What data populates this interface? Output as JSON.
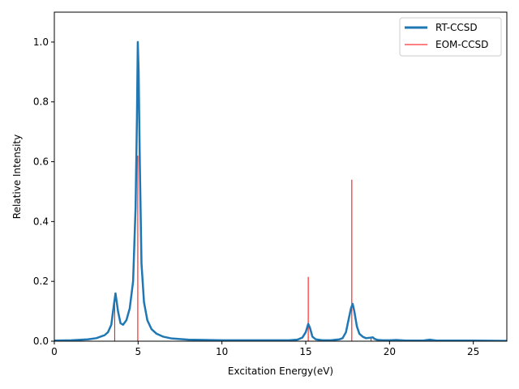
{
  "chart_data": {
    "type": "line",
    "title": "",
    "xlabel": "Excitation Energy(eV)",
    "ylabel": "Relative Intensity",
    "xlim": [
      0,
      27
    ],
    "ylim": [
      0,
      1.1
    ],
    "xticks": [
      0,
      5,
      10,
      15,
      20,
      25
    ],
    "xtick_labels": [
      "0",
      "5",
      "10",
      "15",
      "20",
      "25"
    ],
    "yticks": [
      0.0,
      0.2,
      0.4,
      0.6,
      0.8,
      1.0
    ],
    "ytick_labels": [
      "0.0",
      "0.2",
      "0.4",
      "0.6",
      "0.8",
      "1.0"
    ],
    "grid": false,
    "legend_position": "top-right",
    "series": [
      {
        "name": "RT-CCSD",
        "style": "line",
        "color": "#1f77b4",
        "x": [
          0,
          1,
          2,
          2.5,
          3,
          3.2,
          3.4,
          3.55,
          3.65,
          3.8,
          3.95,
          4.1,
          4.3,
          4.5,
          4.7,
          4.85,
          4.93,
          4.98,
          5.03,
          5.1,
          5.2,
          5.35,
          5.55,
          5.8,
          6.1,
          6.5,
          7,
          8,
          10,
          12,
          14,
          14.5,
          14.8,
          15.0,
          15.15,
          15.25,
          15.4,
          15.6,
          16,
          16.5,
          17,
          17.2,
          17.4,
          17.55,
          17.7,
          17.8,
          17.9,
          18.05,
          18.2,
          18.4,
          18.6,
          18.9,
          19.0,
          19.1,
          19.3,
          19.6,
          20,
          20.4,
          21,
          22,
          22.4,
          22.8,
          23.5,
          25,
          27
        ],
        "values": [
          0.002,
          0.003,
          0.006,
          0.01,
          0.02,
          0.03,
          0.055,
          0.12,
          0.16,
          0.1,
          0.06,
          0.055,
          0.07,
          0.11,
          0.2,
          0.45,
          0.75,
          1.0,
          0.9,
          0.6,
          0.26,
          0.13,
          0.07,
          0.04,
          0.025,
          0.015,
          0.009,
          0.005,
          0.003,
          0.003,
          0.003,
          0.005,
          0.012,
          0.03,
          0.058,
          0.045,
          0.015,
          0.006,
          0.003,
          0.003,
          0.006,
          0.01,
          0.03,
          0.07,
          0.11,
          0.125,
          0.1,
          0.05,
          0.025,
          0.015,
          0.01,
          0.012,
          0.013,
          0.008,
          0.004,
          0.003,
          0.003,
          0.004,
          0.002,
          0.002,
          0.005,
          0.002,
          0.002,
          0.002,
          0.001
        ]
      },
      {
        "name": "EOM-CCSD",
        "style": "stick",
        "color": "#ff0000",
        "x": [
          3.6,
          4.98,
          15.15,
          17.75,
          18.9
        ],
        "values": [
          0.14,
          0.62,
          0.215,
          0.54,
          0.015
        ]
      }
    ]
  }
}
